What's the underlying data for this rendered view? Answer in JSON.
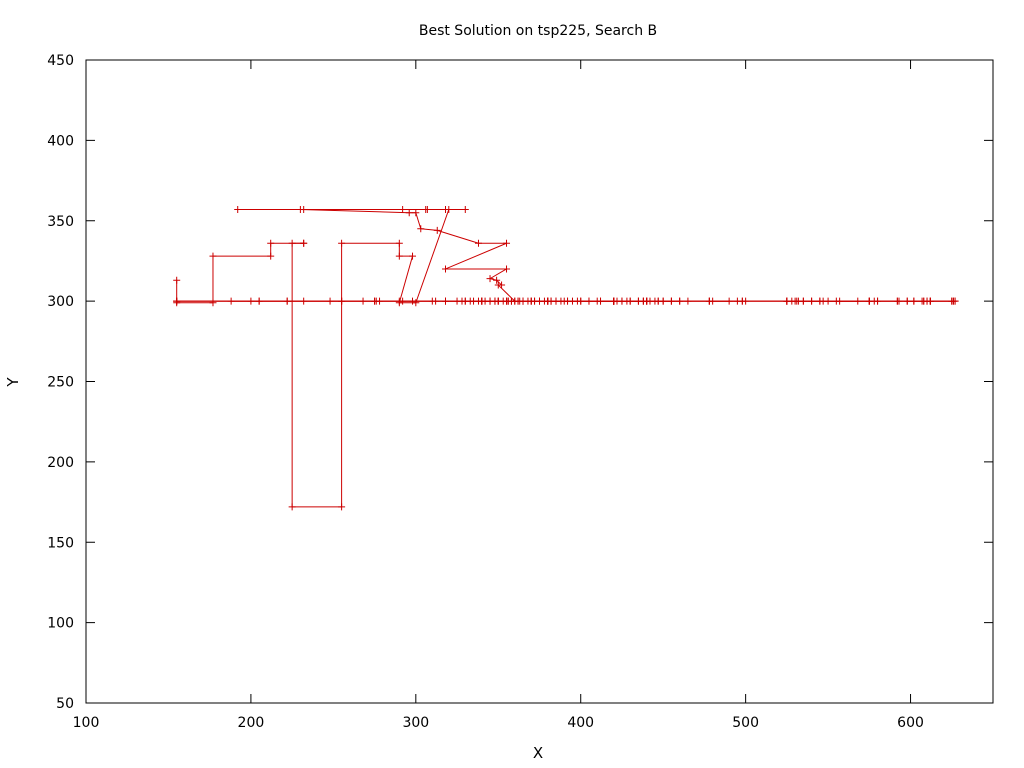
{
  "chart_data": {
    "type": "line",
    "title": "Best Solution on tsp225, Search B",
    "xlabel": "X",
    "ylabel": "Y",
    "xlim": [
      100,
      650
    ],
    "ylim": [
      50,
      450
    ],
    "xticks": [
      100,
      200,
      300,
      400,
      500,
      600
    ],
    "yticks": [
      50,
      100,
      150,
      200,
      250,
      300,
      350,
      400,
      450
    ],
    "xtick_labels": [
      "100",
      "200",
      "300",
      "400",
      "500",
      "600"
    ],
    "ytick_labels": [
      "50",
      "100",
      "150",
      "200",
      "250",
      "300",
      "350",
      "400",
      "450"
    ],
    "grid": false,
    "legend": "none",
    "line_color": "#cc0000",
    "series": [
      {
        "x": [
          155,
          155,
          177,
          177,
          212,
          212,
          232,
          232,
          225,
          225,
          255,
          255,
          290,
          290,
          298,
          290,
          300,
          320,
          318,
          330,
          318,
          307,
          306,
          292,
          192,
          232,
          230,
          296,
          300,
          303,
          313,
          338,
          355,
          318,
          355,
          345,
          349,
          352,
          350,
          360,
          355,
          360,
          353,
          358,
          363,
          350,
          345,
          335,
          358,
          365,
          372,
          390,
          380,
          372,
          382,
          382,
          398,
          412,
          412,
          420,
          420,
          438,
          438,
          442,
          460,
          460,
          438,
          435,
          455,
          440,
          445,
          455,
          455,
          435,
          435,
          425,
          430,
          422,
          420,
          420,
          447,
          447,
          440,
          410,
          392,
          380,
          355,
          375,
          400,
          420,
          420,
          425,
          440,
          430,
          428,
          340,
          340,
          355,
          362,
          365,
          375,
          375,
          385,
          385,
          405,
          405,
          450,
          450,
          420,
          420,
          400,
          380,
          370,
          342,
          380,
          382,
          395,
          350,
          345,
          330,
          340,
          345,
          350,
          348,
          312,
          325,
          330,
          356,
          365,
          368,
          380,
          370,
          340,
          318,
          362,
          338,
          365,
          370,
          378,
          498,
          498,
          495,
          478,
          478,
          490,
          420,
          420,
          388,
          480,
          525,
          525,
          535,
          535,
          550,
          568,
          557,
          547,
          540,
          592,
          592,
          602,
          602,
          608,
          608,
          627,
          627,
          612,
          612,
          607,
          612,
          612,
          598,
          598,
          610,
          610,
          593,
          580,
          575,
          575,
          545,
          545,
          575,
          575,
          525,
          525,
          530,
          555,
          540,
          528,
          500,
          465,
          440,
          392,
          358,
          348,
          155,
          155,
          248,
          278,
          310,
          292,
          276,
          268,
          232,
          188,
          200,
          205,
          205,
          222,
          222,
          255,
          255,
          275,
          275,
          298,
          318,
          318,
          328,
          348,
          356,
          356,
          333,
          290,
          255,
          155,
          625,
          625,
          578,
          525,
          531,
          532,
          580,
          626,
          626,
          478
        ],
        "y": [
          313,
          299,
          299,
          328,
          328,
          336,
          336,
          336,
          336,
          172,
          172,
          336,
          336,
          328,
          328,
          299,
          299,
          357,
          357,
          357,
          357,
          357,
          357,
          357,
          357,
          357,
          357,
          355,
          355,
          345,
          344,
          336,
          336,
          320,
          320,
          314,
          313,
          310,
          310,
          300,
          300,
          300,
          300,
          300,
          300,
          300,
          300,
          300,
          300,
          300,
          300,
          300,
          300,
          300,
          300,
          300,
          300,
          300,
          300,
          300,
          300,
          300,
          300,
          300,
          300,
          300,
          300,
          300,
          300,
          300,
          300,
          300,
          300,
          300,
          300,
          300,
          300,
          300,
          300,
          300,
          300,
          300,
          300,
          300,
          300,
          300,
          300,
          300,
          300,
          300,
          300,
          300,
          300,
          300,
          300,
          300,
          300,
          300,
          300,
          300,
          300,
          300,
          300,
          300,
          300,
          300,
          300,
          300,
          300,
          300,
          300,
          300,
          300,
          300,
          300,
          300,
          300,
          300,
          300,
          300,
          300,
          300,
          300,
          300,
          300,
          300,
          300,
          300,
          300,
          300,
          300,
          300,
          300,
          300,
          300,
          300,
          300,
          300,
          300,
          300,
          300,
          300,
          300,
          300,
          300,
          300,
          300,
          300,
          300,
          300,
          300,
          300,
          300,
          300,
          300,
          300,
          300,
          300,
          300,
          300,
          300,
          300,
          300,
          300,
          300,
          300,
          300,
          300,
          300,
          300,
          300,
          300,
          300,
          300,
          300,
          300,
          300,
          300,
          300,
          300,
          300,
          300,
          300,
          300,
          300,
          300,
          300,
          300,
          300,
          300,
          300,
          300,
          300,
          300,
          300,
          300,
          300,
          300,
          300,
          300,
          300,
          300,
          300,
          300,
          300,
          300,
          300,
          300,
          300,
          300,
          300,
          300,
          300,
          300,
          300,
          300,
          300,
          300,
          300,
          300,
          300,
          300,
          300,
          300,
          300,
          300,
          300,
          300,
          300,
          300,
          300,
          300,
          300,
          300,
          300
        ]
      }
    ]
  }
}
